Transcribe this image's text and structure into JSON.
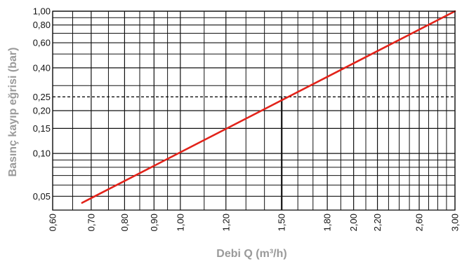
{
  "chart_data": {
    "type": "line",
    "xlabel": "Debi Q (m³/h)",
    "ylabel": "Basınç kayıp eğrisi (bar)",
    "x_scale": "log",
    "y_scale": "log",
    "xlim": [
      0.6,
      3.0
    ],
    "ylim": [
      0.04,
      1.0
    ],
    "x_ticks": [
      {
        "v": 0.6,
        "label": "0,60"
      },
      {
        "v": 0.7,
        "label": "0,70"
      },
      {
        "v": 0.8,
        "label": "0,80"
      },
      {
        "v": 0.9,
        "label": "0,90"
      },
      {
        "v": 1.0,
        "label": "1,00"
      },
      {
        "v": 1.2,
        "label": "1,20"
      },
      {
        "v": 1.5,
        "label": "1,50"
      },
      {
        "v": 1.8,
        "label": "1,80"
      },
      {
        "v": 2.0,
        "label": "2,00"
      },
      {
        "v": 2.2,
        "label": "2,20"
      },
      {
        "v": 2.6,
        "label": "2,60"
      },
      {
        "v": 3.0,
        "label": "3,00"
      }
    ],
    "y_ticks": [
      {
        "v": 0.05,
        "label": "0,05"
      },
      {
        "v": 0.1,
        "label": "0,10"
      },
      {
        "v": 0.15,
        "label": "0,15"
      },
      {
        "v": 0.2,
        "label": "0,20"
      },
      {
        "v": 0.25,
        "label": "0,25"
      },
      {
        "v": 0.4,
        "label": "0,40"
      },
      {
        "v": 0.6,
        "label": "0,60"
      },
      {
        "v": 0.8,
        "label": "0,80"
      },
      {
        "v": 1.0,
        "label": "1,00"
      }
    ],
    "grid": true,
    "x_minor_grid": [
      0.65,
      0.75,
      0.85,
      0.95,
      1.1,
      1.3,
      1.4,
      1.6,
      1.7,
      1.9,
      2.1,
      2.3,
      2.4,
      2.5,
      2.7,
      2.8,
      2.9
    ],
    "y_minor_grid": [
      0.06,
      0.07,
      0.08,
      0.09,
      0.3,
      0.5,
      0.7,
      0.9
    ],
    "series": [
      {
        "color": "#e2231a",
        "x": [
          0.675,
          3.0
        ],
        "y": [
          0.045,
          1.0
        ]
      }
    ],
    "reference": {
      "x": 1.5,
      "y": 0.25
    }
  },
  "colors": {
    "curve": "#e2231a",
    "grid": "#111111",
    "axis_title": "#9a9a9a"
  }
}
